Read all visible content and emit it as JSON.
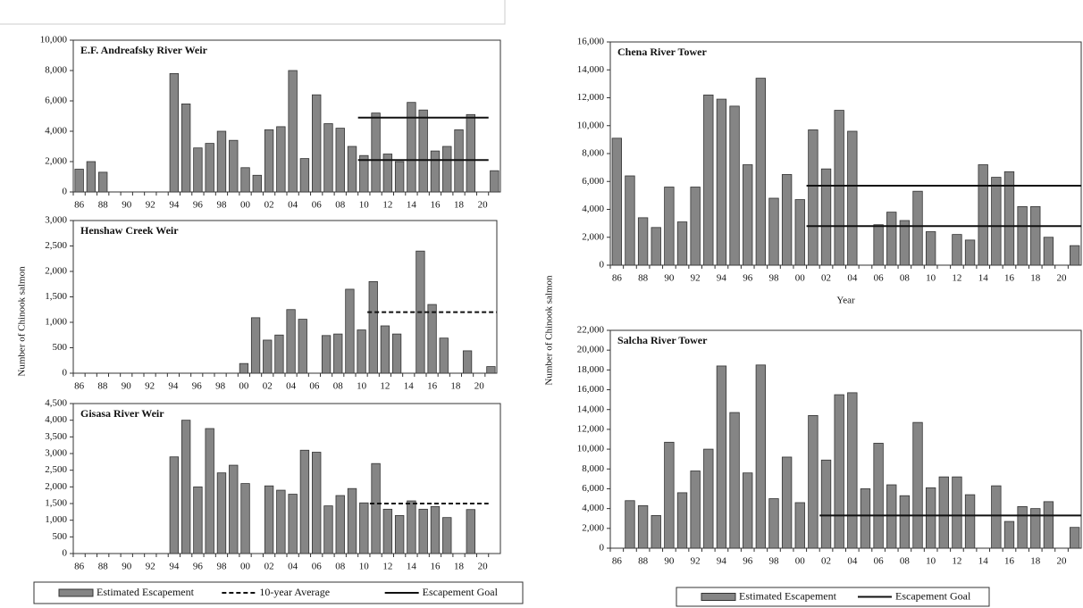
{
  "chart_data": [
    {
      "type": "bar",
      "title": "E.F. Andreafsky River Weir",
      "categories": [
        "86",
        null,
        "88",
        null,
        "90",
        null,
        "92",
        null,
        "94",
        null,
        "96",
        null,
        "98",
        null,
        "00",
        null,
        "02",
        null,
        "04",
        null,
        "06",
        null,
        "08",
        null,
        "10",
        null,
        "12",
        null,
        "14",
        null,
        "16",
        null,
        "18",
        null,
        "20",
        null
      ],
      "ylim": [
        0,
        10000
      ],
      "yticks": [
        0,
        {
          "value": 2000,
          "label": "2,000"
        },
        {
          "value": 4000,
          "label": "4,000"
        },
        {
          "value": 6000,
          "label": "6,000"
        },
        {
          "value": 8000,
          "label": "8,000"
        },
        {
          "value": 10000,
          "label": "10,000"
        }
      ],
      "series": [
        {
          "kind": "bar",
          "color": "#858585",
          "values": [
            1500,
            2000,
            1300,
            null,
            null,
            null,
            null,
            null,
            7800,
            5800,
            2900,
            3200,
            4000,
            3400,
            1600,
            1100,
            4100,
            4300,
            8000,
            2200,
            6400,
            4500,
            4200,
            3000,
            2400,
            5200,
            2500,
            2000,
            5900,
            5400,
            2700,
            3000,
            4100,
            5100,
            null,
            1400
          ]
        },
        {
          "kind": "line",
          "style": "solid",
          "color": "#111111",
          "values": [
            null,
            null,
            null,
            null,
            null,
            null,
            null,
            null,
            null,
            null,
            null,
            null,
            null,
            null,
            null,
            null,
            null,
            null,
            null,
            null,
            null,
            null,
            null,
            null,
            4900,
            4900,
            4900,
            4900,
            4900,
            4900,
            4900,
            4900,
            4900,
            4900,
            4900,
            null
          ]
        },
        {
          "kind": "line",
          "style": "solid",
          "color": "#111111",
          "values": [
            null,
            null,
            null,
            null,
            null,
            null,
            null,
            null,
            null,
            null,
            null,
            null,
            null,
            null,
            null,
            null,
            null,
            null,
            null,
            null,
            null,
            null,
            null,
            null,
            2100,
            2100,
            2100,
            2100,
            2100,
            2100,
            2100,
            2100,
            2100,
            2100,
            2100,
            null
          ]
        }
      ]
    },
    {
      "type": "bar",
      "title": "Henshaw Creek Weir",
      "y_label": "Number of Chinook salmon",
      "categories": [
        "86",
        null,
        "88",
        null,
        "90",
        null,
        "92",
        null,
        "94",
        null,
        "96",
        null,
        "98",
        null,
        "00",
        null,
        "02",
        null,
        "04",
        null,
        "06",
        null,
        "08",
        null,
        "10",
        null,
        "12",
        null,
        "14",
        null,
        "16",
        null,
        "18",
        null,
        "20",
        null
      ],
      "ylim": [
        0,
        3000
      ],
      "yticks": [
        0,
        500,
        {
          "value": 1000,
          "label": "1,000"
        },
        {
          "value": 1500,
          "label": "1,500"
        },
        {
          "value": 2000,
          "label": "2,000"
        },
        {
          "value": 2500,
          "label": "2,500"
        },
        {
          "value": 3000,
          "label": "3,000"
        }
      ],
      "series": [
        {
          "kind": "bar",
          "color": "#858585",
          "values": [
            null,
            null,
            null,
            null,
            null,
            null,
            null,
            null,
            null,
            null,
            null,
            null,
            null,
            null,
            190,
            1090,
            650,
            750,
            1250,
            1060,
            null,
            740,
            770,
            1650,
            850,
            1800,
            930,
            770,
            null,
            2400,
            1350,
            690,
            null,
            440,
            null,
            130
          ]
        },
        {
          "kind": "line",
          "style": "dashed",
          "color": "#111111",
          "values": [
            null,
            null,
            null,
            null,
            null,
            null,
            null,
            null,
            null,
            null,
            null,
            null,
            null,
            null,
            null,
            null,
            null,
            null,
            null,
            null,
            null,
            null,
            null,
            null,
            null,
            1200,
            1200,
            1200,
            1200,
            1200,
            1200,
            1200,
            1200,
            1200,
            1200,
            1200
          ]
        }
      ]
    },
    {
      "type": "bar",
      "title": "Gisasa River Weir",
      "categories": [
        "86",
        null,
        "88",
        null,
        "90",
        null,
        "92",
        null,
        "94",
        null,
        "96",
        null,
        "98",
        null,
        "00",
        null,
        "02",
        null,
        "04",
        null,
        "06",
        null,
        "08",
        null,
        "10",
        null,
        "12",
        null,
        "14",
        null,
        "16",
        null,
        "18",
        null,
        "20",
        null
      ],
      "ylim": [
        0,
        4500
      ],
      "yticks": [
        0,
        500,
        {
          "value": 1000,
          "label": "1,000"
        },
        {
          "value": 1500,
          "label": "1,500"
        },
        {
          "value": 2000,
          "label": "2,000"
        },
        {
          "value": 2500,
          "label": "2,500"
        },
        {
          "value": 3000,
          "label": "3,000"
        },
        {
          "value": 3500,
          "label": "3,500"
        },
        {
          "value": 4000,
          "label": "4,000"
        },
        {
          "value": 4500,
          "label": "4,500"
        }
      ],
      "series": [
        {
          "kind": "bar",
          "color": "#858585",
          "values": [
            null,
            null,
            null,
            null,
            null,
            null,
            null,
            null,
            2900,
            4000,
            2000,
            3750,
            2420,
            2650,
            2100,
            null,
            2030,
            1900,
            1780,
            3100,
            3040,
            1430,
            1740,
            1950,
            1520,
            2700,
            1330,
            1140,
            1580,
            1330,
            1410,
            1080,
            null,
            1320,
            null,
            null
          ]
        },
        {
          "kind": "line",
          "style": "dashed",
          "color": "#111111",
          "values": [
            null,
            null,
            null,
            null,
            null,
            null,
            null,
            null,
            null,
            null,
            null,
            null,
            null,
            null,
            null,
            null,
            null,
            null,
            null,
            null,
            null,
            null,
            null,
            null,
            null,
            1500,
            1500,
            1500,
            1500,
            1500,
            1500,
            1500,
            1500,
            1500,
            1500,
            null
          ]
        }
      ],
      "legend": [
        {
          "label": "Estimated Escapement",
          "style": "bar"
        },
        {
          "label": "10-year Average",
          "style": "dashed"
        },
        {
          "label": "Escapement Goal",
          "style": "solid"
        }
      ]
    },
    {
      "type": "bar",
      "title": "Chena River Tower",
      "y_label": "Number of Chinook salmon",
      "x_label": "Year",
      "categories": [
        "86",
        null,
        "88",
        null,
        "90",
        null,
        "92",
        null,
        "94",
        null,
        "96",
        null,
        "98",
        null,
        "00",
        null,
        "02",
        null,
        "04",
        null,
        "06",
        null,
        "08",
        null,
        "10",
        null,
        "12",
        null,
        "14",
        null,
        "16",
        null,
        "18",
        null,
        "20",
        null
      ],
      "ylim": [
        0,
        16000
      ],
      "yticks": [
        0,
        {
          "value": 2000,
          "label": "2,000"
        },
        {
          "value": 4000,
          "label": "4,000"
        },
        {
          "value": 6000,
          "label": "6,000"
        },
        {
          "value": 8000,
          "label": "8,000"
        },
        {
          "value": 10000,
          "label": "10,000"
        },
        {
          "value": 12000,
          "label": "12,000"
        },
        {
          "value": 14000,
          "label": "14,000"
        },
        {
          "value": 16000,
          "label": "16,000"
        }
      ],
      "series": [
        {
          "kind": "bar",
          "color": "#858585",
          "values": [
            9100,
            6400,
            3400,
            2700,
            5600,
            3100,
            5600,
            12200,
            11900,
            11400,
            7200,
            13400,
            4800,
            6500,
            4700,
            9700,
            6900,
            11100,
            9600,
            null,
            2900,
            3800,
            3200,
            5300,
            2400,
            null,
            2200,
            1800,
            7200,
            6300,
            6700,
            4200,
            4200,
            2000,
            null,
            1400
          ]
        },
        {
          "kind": "line",
          "style": "solid",
          "color": "#111111",
          "values": [
            null,
            null,
            null,
            null,
            null,
            null,
            null,
            null,
            null,
            null,
            null,
            null,
            null,
            null,
            null,
            5700,
            5700,
            5700,
            5700,
            5700,
            5700,
            5700,
            5700,
            5700,
            5700,
            5700,
            5700,
            5700,
            5700,
            5700,
            5700,
            5700,
            5700,
            5700,
            5700,
            5700
          ]
        },
        {
          "kind": "line",
          "style": "solid",
          "color": "#111111",
          "values": [
            null,
            null,
            null,
            null,
            null,
            null,
            null,
            null,
            null,
            null,
            null,
            null,
            null,
            null,
            null,
            2800,
            2800,
            2800,
            2800,
            2800,
            2800,
            2800,
            2800,
            2800,
            2800,
            2800,
            2800,
            2800,
            2800,
            2800,
            2800,
            2800,
            2800,
            2800,
            2800,
            2800
          ]
        }
      ]
    },
    {
      "type": "bar",
      "title": "Salcha River Tower",
      "categories": [
        "86",
        null,
        "88",
        null,
        "90",
        null,
        "92",
        null,
        "94",
        null,
        "96",
        null,
        "98",
        null,
        "00",
        null,
        "02",
        null,
        "04",
        null,
        "06",
        null,
        "08",
        null,
        "10",
        null,
        "12",
        null,
        "14",
        null,
        "16",
        null,
        "18",
        null,
        "20",
        null
      ],
      "ylim": [
        0,
        22000
      ],
      "yticks": [
        0,
        {
          "value": 2000,
          "label": "2,000"
        },
        {
          "value": 4000,
          "label": "4,000"
        },
        {
          "value": 6000,
          "label": "6,000"
        },
        {
          "value": 8000,
          "label": "8,000"
        },
        {
          "value": 10000,
          "label": "10,000"
        },
        {
          "value": 12000,
          "label": "12,000"
        },
        {
          "value": 14000,
          "label": "14,000"
        },
        {
          "value": 16000,
          "label": "16,000"
        },
        {
          "value": 18000,
          "label": "18,000"
        },
        {
          "value": 20000,
          "label": "20,000"
        },
        {
          "value": 22000,
          "label": "22,000"
        }
      ],
      "series": [
        {
          "kind": "bar",
          "color": "#858585",
          "values": [
            null,
            4800,
            4300,
            3300,
            10700,
            5600,
            7800,
            10000,
            18400,
            13700,
            7600,
            18500,
            5000,
            9200,
            4600,
            13400,
            8900,
            15500,
            15700,
            6000,
            10600,
            6400,
            5300,
            12700,
            6100,
            7200,
            7200,
            5400,
            null,
            6300,
            2700,
            4200,
            4000,
            4700,
            null,
            2100
          ]
        },
        {
          "kind": "line",
          "style": "solid",
          "color": "#111111",
          "values": [
            null,
            null,
            null,
            null,
            null,
            null,
            null,
            null,
            null,
            null,
            null,
            null,
            null,
            null,
            null,
            null,
            3300,
            3300,
            3300,
            3300,
            3300,
            3300,
            3300,
            3300,
            3300,
            3300,
            3300,
            3300,
            3300,
            3300,
            3300,
            3300,
            3300,
            3300,
            3300,
            3300
          ]
        }
      ],
      "legend": [
        {
          "label": "Estimated Escapement",
          "style": "bar"
        },
        {
          "label": "Escapement Goal",
          "style": "solid"
        }
      ]
    }
  ]
}
